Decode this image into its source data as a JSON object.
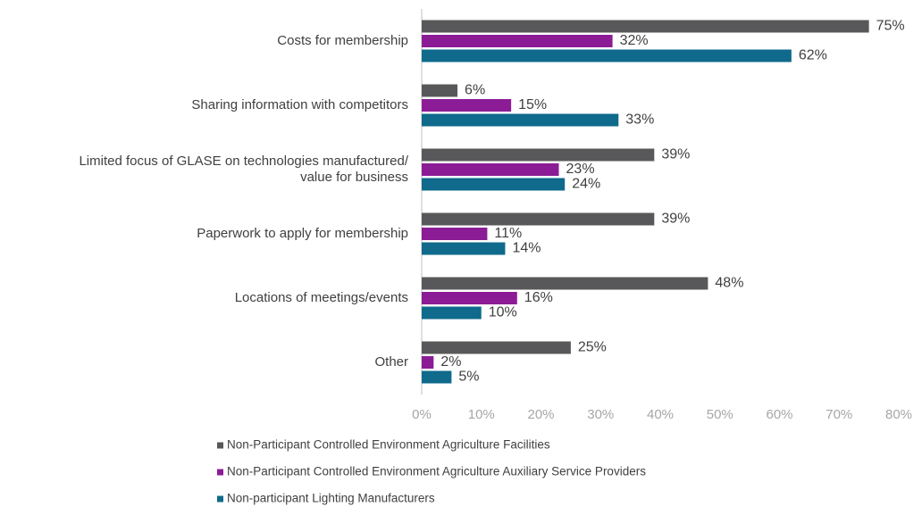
{
  "chart_data": {
    "type": "hbar",
    "categories": [
      "Costs for membership",
      "Sharing information with competitors",
      "Limited focus of GLASE on technologies manufactured/\nvalue for business",
      "Paperwork to apply for membership",
      "Locations of meetings/events",
      "Other"
    ],
    "series": [
      {
        "name": "Non-Participant Controlled Environment Agriculture Facilities",
        "color": "#58585a",
        "values": [
          75,
          6,
          39,
          39,
          48,
          25
        ],
        "value_labels": [
          "75%",
          "6%",
          "39%",
          "39%",
          "48%",
          "25%"
        ]
      },
      {
        "name": "Non-Participant Controlled Environment Agriculture Auxiliary Service Providers",
        "color": "#8c1c96",
        "values": [
          32,
          15,
          23,
          11,
          16,
          2
        ],
        "value_labels": [
          "32%",
          "15%",
          "23%",
          "11%",
          "16%",
          "2%"
        ]
      },
      {
        "name": "Non-participant Lighting Manufacturers",
        "color": "#0f6a8c",
        "values": [
          62,
          33,
          24,
          14,
          10,
          5
        ],
        "value_labels": [
          "62%",
          "33%",
          "24%",
          "14%",
          "10%",
          "5%"
        ]
      }
    ],
    "xlim": [
      0,
      80
    ],
    "xticks": [
      {
        "value": 0,
        "label": "0%"
      },
      {
        "value": 10,
        "label": "10%"
      },
      {
        "value": 20,
        "label": "20%"
      },
      {
        "value": 30,
        "label": "30%"
      },
      {
        "value": 40,
        "label": "40%"
      },
      {
        "value": 50,
        "label": "50%"
      },
      {
        "value": 60,
        "label": "60%"
      },
      {
        "value": 70,
        "label": "70%"
      },
      {
        "value": 80,
        "label": "80%"
      }
    ],
    "grid": false,
    "legend": "bottom"
  }
}
